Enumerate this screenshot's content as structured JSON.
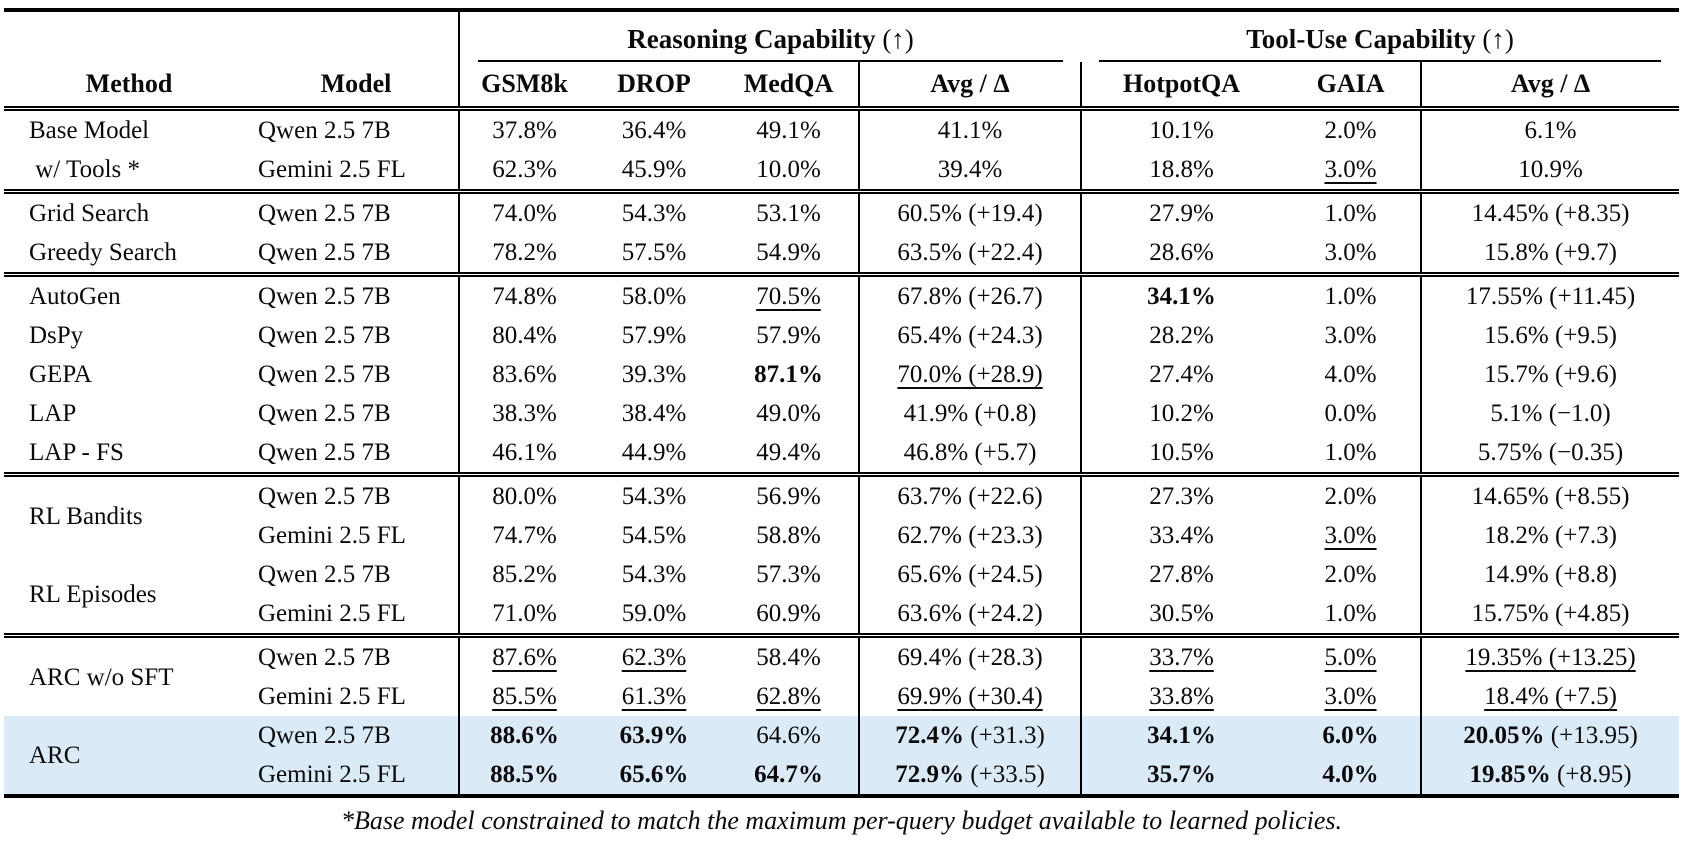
{
  "table": {
    "group_headers": [
      {
        "label": "Reasoning Capability",
        "arrow": "(↑)"
      },
      {
        "label": "Tool-Use Capability",
        "arrow": "(↑)"
      }
    ],
    "col_headers": {
      "method": "Method",
      "model": "Model",
      "cols": [
        "GSM8k",
        "DROP",
        "MedQA",
        "Avg / Δ",
        "HotpotQA",
        "GAIA",
        "Avg / Δ"
      ]
    },
    "sections": [
      {
        "groups": [
          {
            "method": "Base Model",
            "rows": [
              {
                "model": "Qwen 2.5 7B",
                "cells": [
                  {
                    "t": "37.8%"
                  },
                  {
                    "t": "36.4%"
                  },
                  {
                    "t": "49.1%"
                  },
                  {
                    "t": "41.1%"
                  },
                  {
                    "t": "10.1%"
                  },
                  {
                    "t": "2.0%"
                  },
                  {
                    "t": "6.1%"
                  }
                ]
              }
            ]
          },
          {
            "method": " w/ Tools *",
            "rows": [
              {
                "model": "Gemini 2.5 FL",
                "cells": [
                  {
                    "t": "62.3%"
                  },
                  {
                    "t": "45.9%"
                  },
                  {
                    "t": "10.0%"
                  },
                  {
                    "t": "39.4%"
                  },
                  {
                    "t": "18.8%"
                  },
                  {
                    "t": "3.0%",
                    "u": true
                  },
                  {
                    "t": "10.9%"
                  }
                ]
              }
            ]
          }
        ]
      },
      {
        "groups": [
          {
            "method": "Grid Search",
            "rows": [
              {
                "model": "Qwen 2.5 7B",
                "cells": [
                  {
                    "t": "74.0%"
                  },
                  {
                    "t": "54.3%"
                  },
                  {
                    "t": "53.1%"
                  },
                  {
                    "t": "60.5%",
                    "d": " (+19.4)"
                  },
                  {
                    "t": "27.9%"
                  },
                  {
                    "t": "1.0%"
                  },
                  {
                    "t": "14.45%",
                    "d": " (+8.35)"
                  }
                ]
              }
            ]
          },
          {
            "method": "Greedy Search",
            "rows": [
              {
                "model": "Qwen 2.5 7B",
                "cells": [
                  {
                    "t": "78.2%"
                  },
                  {
                    "t": "57.5%"
                  },
                  {
                    "t": "54.9%"
                  },
                  {
                    "t": "63.5%",
                    "d": " (+22.4)"
                  },
                  {
                    "t": "28.6%"
                  },
                  {
                    "t": "3.0%"
                  },
                  {
                    "t": "15.8%",
                    "d": " (+9.7)"
                  }
                ]
              }
            ]
          }
        ]
      },
      {
        "groups": [
          {
            "method": "AutoGen",
            "rows": [
              {
                "model": "Qwen 2.5 7B",
                "cells": [
                  {
                    "t": "74.8%"
                  },
                  {
                    "t": "58.0%"
                  },
                  {
                    "t": "70.5%",
                    "u": true
                  },
                  {
                    "t": "67.8%",
                    "d": " (+26.7)"
                  },
                  {
                    "t": "34.1%",
                    "b": true
                  },
                  {
                    "t": "1.0%"
                  },
                  {
                    "t": "17.55%",
                    "d": " (+11.45)"
                  }
                ]
              }
            ]
          },
          {
            "method": "DsPy",
            "rows": [
              {
                "model": "Qwen 2.5 7B",
                "cells": [
                  {
                    "t": "80.4%"
                  },
                  {
                    "t": "57.9%"
                  },
                  {
                    "t": "57.9%"
                  },
                  {
                    "t": "65.4%",
                    "d": " (+24.3)"
                  },
                  {
                    "t": "28.2%"
                  },
                  {
                    "t": "3.0%"
                  },
                  {
                    "t": "15.6%",
                    "d": " (+9.5)"
                  }
                ]
              }
            ]
          },
          {
            "method": "GEPA",
            "rows": [
              {
                "model": "Qwen 2.5 7B",
                "cells": [
                  {
                    "t": "83.6%"
                  },
                  {
                    "t": "39.3%"
                  },
                  {
                    "t": "87.1%",
                    "b": true
                  },
                  {
                    "t": "70.0%",
                    "d": " (+28.9)",
                    "u": true
                  },
                  {
                    "t": "27.4%"
                  },
                  {
                    "t": "4.0%"
                  },
                  {
                    "t": "15.7%",
                    "d": " (+9.6)"
                  }
                ]
              }
            ]
          },
          {
            "method": "LAP",
            "rows": [
              {
                "model": "Qwen 2.5 7B",
                "cells": [
                  {
                    "t": "38.3%"
                  },
                  {
                    "t": "38.4%"
                  },
                  {
                    "t": "49.0%"
                  },
                  {
                    "t": "41.9%",
                    "d": " (+0.8)"
                  },
                  {
                    "t": "10.2%"
                  },
                  {
                    "t": "0.0%"
                  },
                  {
                    "t": "5.1%",
                    "d": " (−1.0)"
                  }
                ]
              }
            ]
          },
          {
            "method": "LAP - FS",
            "rows": [
              {
                "model": "Qwen 2.5 7B",
                "cells": [
                  {
                    "t": "46.1%"
                  },
                  {
                    "t": "44.9%"
                  },
                  {
                    "t": "49.4%"
                  },
                  {
                    "t": "46.8%",
                    "d": " (+5.7)"
                  },
                  {
                    "t": "10.5%"
                  },
                  {
                    "t": "1.0%"
                  },
                  {
                    "t": "5.75%",
                    "d": " (−0.35)"
                  }
                ]
              }
            ]
          }
        ]
      },
      {
        "groups": [
          {
            "method": "RL Bandits",
            "rows": [
              {
                "model": "Qwen 2.5 7B",
                "cells": [
                  {
                    "t": "80.0%"
                  },
                  {
                    "t": "54.3%"
                  },
                  {
                    "t": "56.9%"
                  },
                  {
                    "t": "63.7%",
                    "d": " (+22.6)"
                  },
                  {
                    "t": "27.3%"
                  },
                  {
                    "t": "2.0%"
                  },
                  {
                    "t": "14.65%",
                    "d": " (+8.55)"
                  }
                ]
              },
              {
                "model": "Gemini 2.5 FL",
                "cells": [
                  {
                    "t": "74.7%"
                  },
                  {
                    "t": "54.5%"
                  },
                  {
                    "t": "58.8%"
                  },
                  {
                    "t": "62.7%",
                    "d": " (+23.3)"
                  },
                  {
                    "t": "33.4%"
                  },
                  {
                    "t": "3.0%",
                    "u": true
                  },
                  {
                    "t": "18.2%",
                    "d": " (+7.3)"
                  }
                ]
              }
            ]
          },
          {
            "method": "RL Episodes",
            "rows": [
              {
                "model": "Qwen 2.5 7B",
                "cells": [
                  {
                    "t": "85.2%"
                  },
                  {
                    "t": "54.3%"
                  },
                  {
                    "t": "57.3%"
                  },
                  {
                    "t": "65.6%",
                    "d": " (+24.5)"
                  },
                  {
                    "t": "27.8%"
                  },
                  {
                    "t": "2.0%"
                  },
                  {
                    "t": "14.9%",
                    "d": " (+8.8)"
                  }
                ]
              },
              {
                "model": "Gemini 2.5 FL",
                "cells": [
                  {
                    "t": "71.0%"
                  },
                  {
                    "t": "59.0%"
                  },
                  {
                    "t": "60.9%"
                  },
                  {
                    "t": "63.6%",
                    "d": " (+24.2)"
                  },
                  {
                    "t": "30.5%"
                  },
                  {
                    "t": "1.0%"
                  },
                  {
                    "t": "15.75%",
                    "d": " (+4.85)"
                  }
                ]
              }
            ]
          }
        ]
      },
      {
        "groups": [
          {
            "method": "ARC w/o SFT",
            "rows": [
              {
                "model": "Qwen 2.5 7B",
                "cells": [
                  {
                    "t": "87.6%",
                    "u": true
                  },
                  {
                    "t": "62.3%",
                    "u": true
                  },
                  {
                    "t": "58.4%"
                  },
                  {
                    "t": "69.4%",
                    "d": " (+28.3)"
                  },
                  {
                    "t": "33.7%",
                    "u": true
                  },
                  {
                    "t": "5.0%",
                    "u": true
                  },
                  {
                    "t": "19.35%",
                    "d": " (+13.25)",
                    "u": true
                  }
                ]
              },
              {
                "model": "Gemini 2.5 FL",
                "cells": [
                  {
                    "t": "85.5%",
                    "u": true
                  },
                  {
                    "t": "61.3%",
                    "u": true
                  },
                  {
                    "t": "62.8%",
                    "u": true
                  },
                  {
                    "t": "69.9%",
                    "d": " (+30.4)",
                    "u": true
                  },
                  {
                    "t": "33.8%",
                    "u": true
                  },
                  {
                    "t": "3.0%",
                    "u": true
                  },
                  {
                    "t": "18.4%",
                    "d": " (+7.5)",
                    "u": true
                  }
                ]
              }
            ]
          },
          {
            "method": "ARC",
            "highlight": true,
            "rows": [
              {
                "model": "Qwen 2.5 7B",
                "cells": [
                  {
                    "t": "88.6%",
                    "b": true
                  },
                  {
                    "t": "63.9%",
                    "b": true
                  },
                  {
                    "t": "64.6%"
                  },
                  {
                    "t": "72.4%",
                    "b": true,
                    "d": " (+31.3)"
                  },
                  {
                    "t": "34.1%",
                    "b": true
                  },
                  {
                    "t": "6.0%",
                    "b": true
                  },
                  {
                    "t": "20.05%",
                    "b": true,
                    "d": " (+13.95)"
                  }
                ]
              },
              {
                "model": "Gemini 2.5 FL",
                "cells": [
                  {
                    "t": "88.5%",
                    "b": true
                  },
                  {
                    "t": "65.6%",
                    "b": true
                  },
                  {
                    "t": "64.7%",
                    "b": true
                  },
                  {
                    "t": "72.9%",
                    "b": true,
                    "d": " (+33.5)"
                  },
                  {
                    "t": "35.7%",
                    "b": true
                  },
                  {
                    "t": "4.0%",
                    "b": true
                  },
                  {
                    "t": "19.85%",
                    "b": true,
                    "d": " (+8.95)"
                  }
                ]
              }
            ]
          }
        ]
      }
    ],
    "footnote": "*Base model constrained to match the maximum per-query budget available to learned policies."
  },
  "colors": {
    "highlight": "#dbeaf7",
    "rule": "#000000",
    "text": "#0a0a0a"
  }
}
